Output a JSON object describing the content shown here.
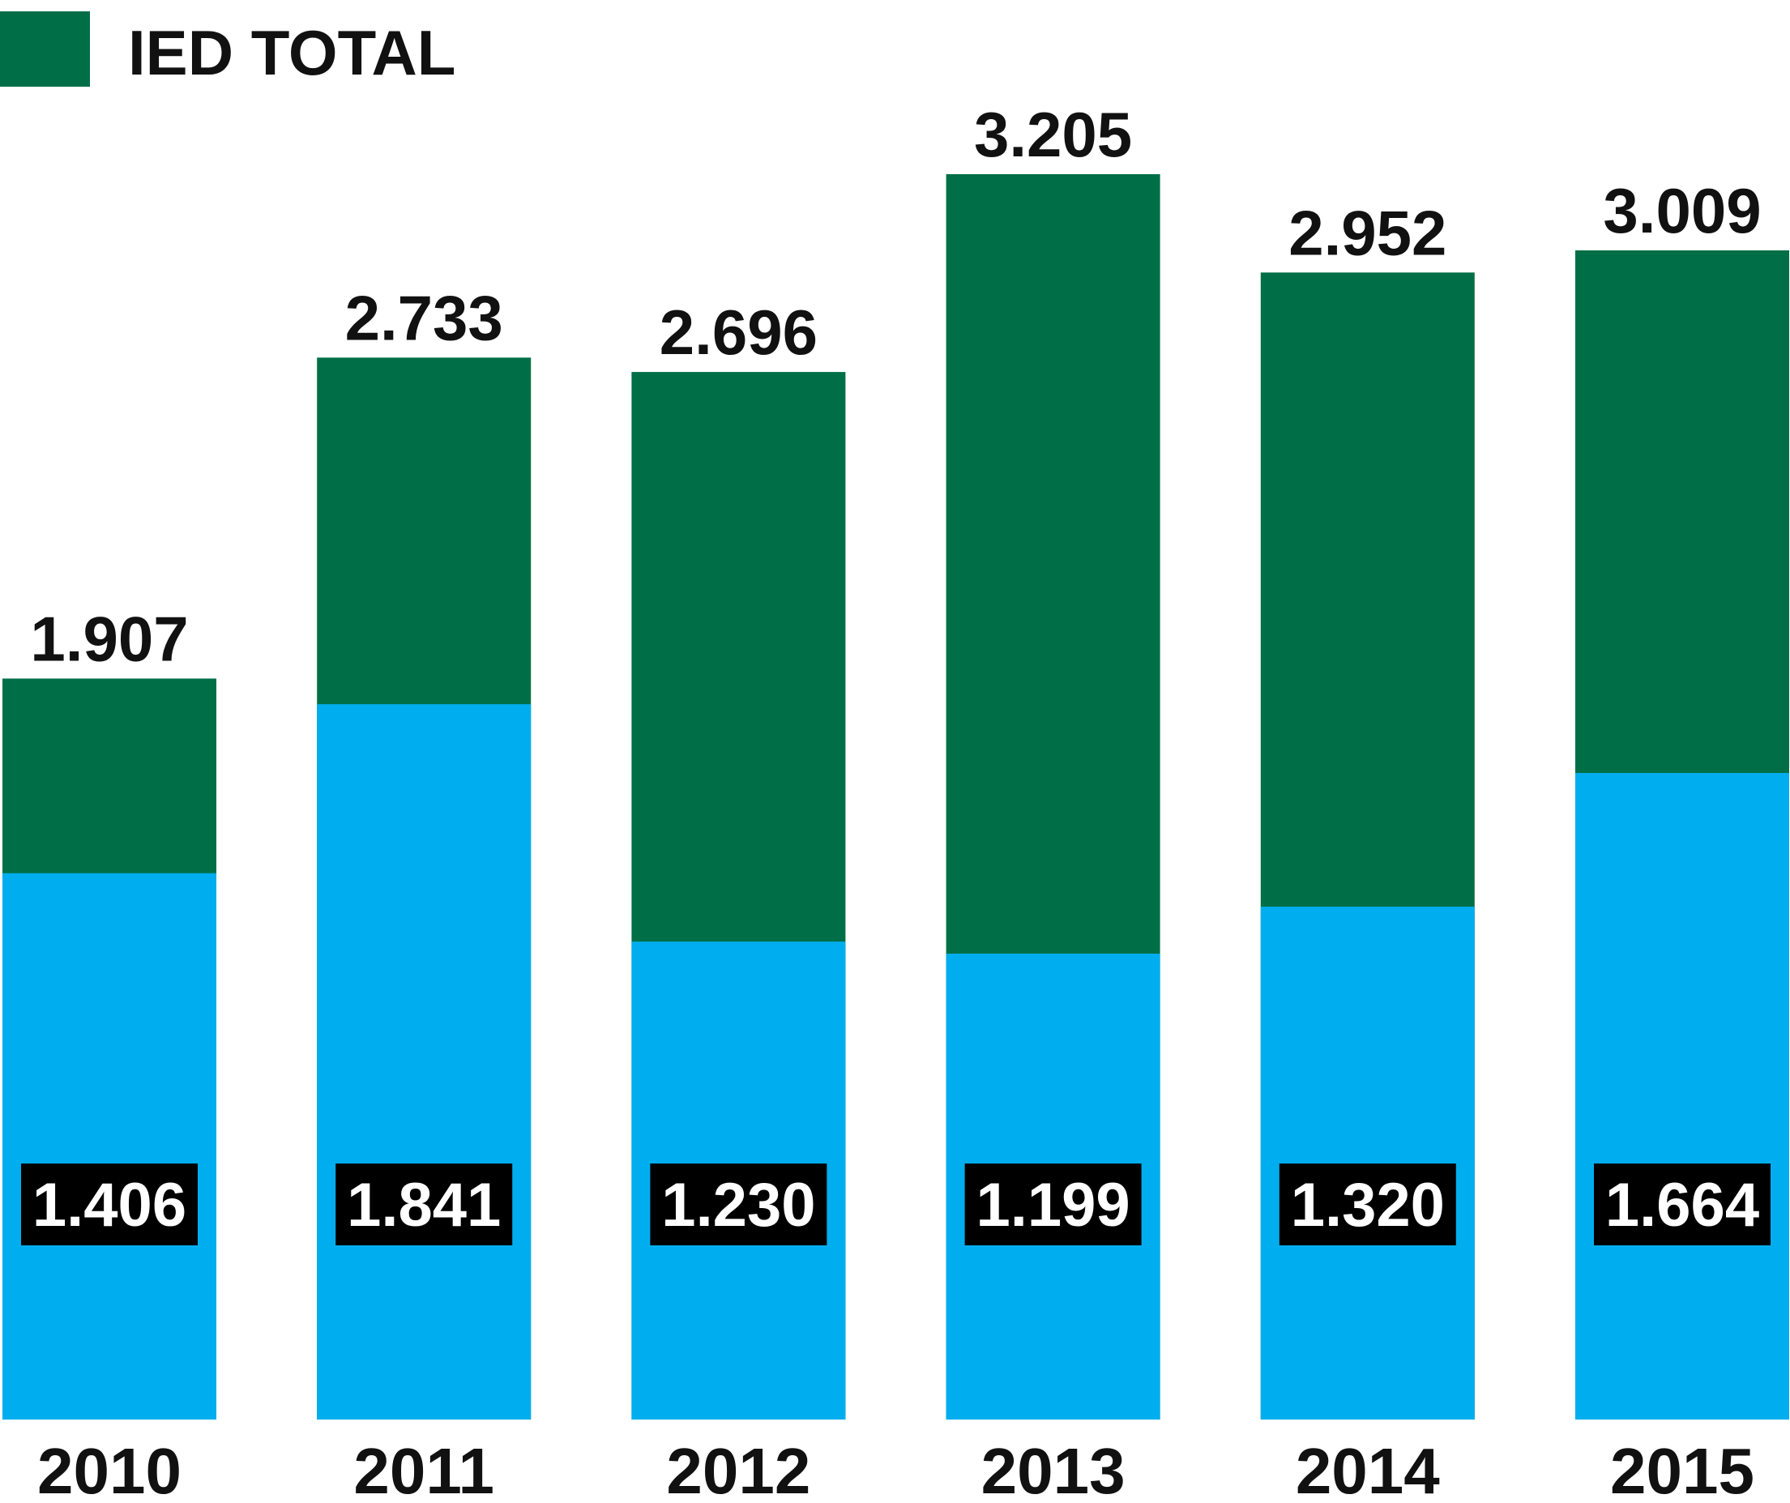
{
  "chart_data": {
    "type": "bar",
    "stacked": true,
    "categories": [
      "2010",
      "2011",
      "2012",
      "2013",
      "2014",
      "2015"
    ],
    "series": [
      {
        "color": "#00aeef",
        "values": [
          1.406,
          1.841,
          1.23,
          1.199,
          1.32,
          1.664
        ],
        "labels": [
          "1.406",
          "1.841",
          "1.230",
          "1.199",
          "1.320",
          "1.664"
        ]
      },
      {
        "name": "IED TOTAL",
        "color": "#006f47",
        "values": [
          1.907,
          2.733,
          2.696,
          3.205,
          2.952,
          3.009
        ],
        "labels": [
          "1.907",
          "2.733",
          "2.696",
          "3.205",
          "2.952",
          "3.009"
        ]
      }
    ],
    "label_box_color": "#000000",
    "legend": {
      "position": "top-left"
    },
    "grid": false,
    "axes_visible": false
  }
}
